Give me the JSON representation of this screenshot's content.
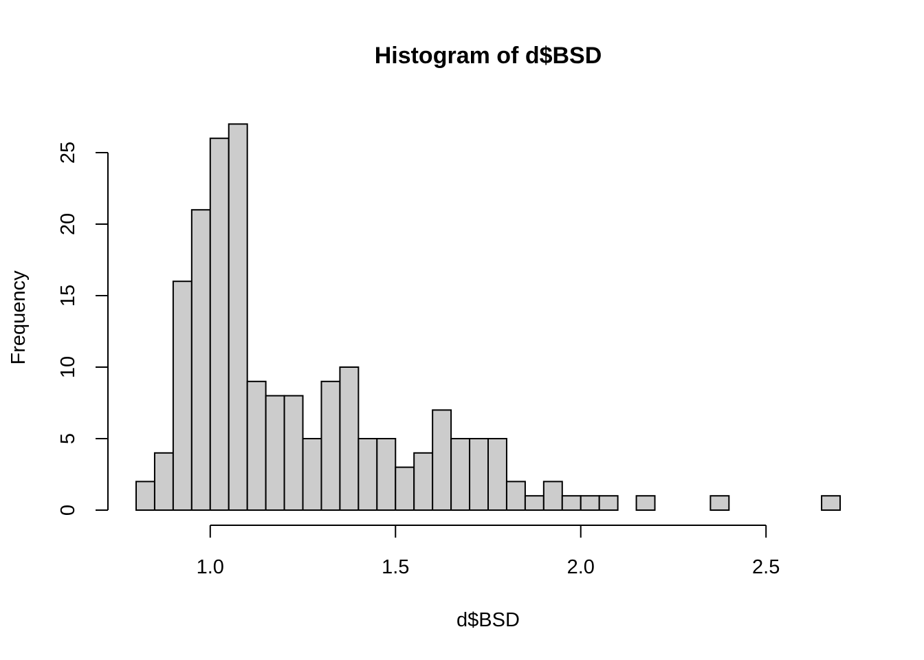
{
  "chart_data": {
    "type": "bar",
    "title": "Histogram of d$BSD",
    "xlabel": "d$BSD",
    "ylabel": "Frequency",
    "bin_edges": [
      0.8,
      0.85,
      0.9,
      0.95,
      1.0,
      1.05,
      1.1,
      1.15,
      1.2,
      1.25,
      1.3,
      1.35,
      1.4,
      1.45,
      1.5,
      1.55,
      1.6,
      1.65,
      1.7,
      1.75,
      1.8,
      1.85,
      1.9,
      1.95,
      2.0,
      2.05,
      2.1,
      2.15,
      2.2,
      2.25,
      2.3,
      2.35,
      2.4,
      2.45,
      2.5,
      2.55,
      2.6,
      2.65,
      2.7
    ],
    "values": [
      2,
      4,
      16,
      21,
      26,
      27,
      9,
      8,
      8,
      5,
      9,
      10,
      5,
      5,
      3,
      4,
      7,
      5,
      5,
      5,
      2,
      1,
      2,
      1,
      1,
      1,
      0,
      1,
      0,
      0,
      0,
      1,
      0,
      0,
      0,
      0,
      0,
      1
    ],
    "xlim": [
      0.8,
      2.7
    ],
    "ylim": [
      0,
      27
    ],
    "x_ticks": [
      1.0,
      1.5,
      2.0,
      2.5
    ],
    "x_tick_labels": [
      "1.0",
      "1.5",
      "2.0",
      "2.5"
    ],
    "y_ticks": [
      0,
      5,
      10,
      15,
      20,
      25
    ],
    "y_tick_labels": [
      "0",
      "5",
      "10",
      "15",
      "20",
      "25"
    ],
    "grid": false,
    "colors": {
      "bar_fill": "#cccccc",
      "bar_stroke": "#000000"
    }
  }
}
